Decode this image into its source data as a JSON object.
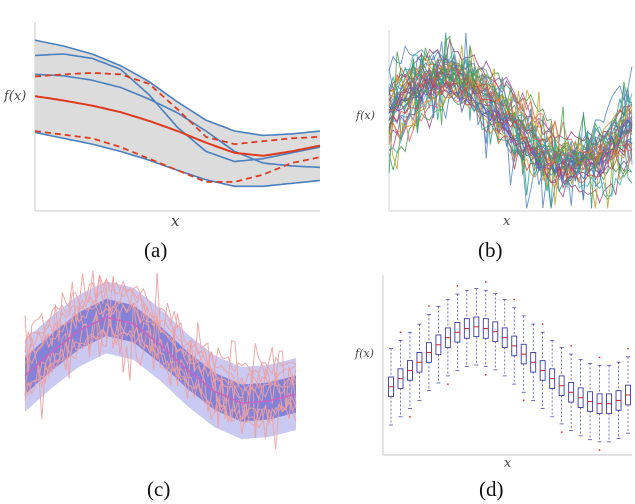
{
  "figure": {
    "captions": [
      "(a)",
      "(b)",
      "(c)",
      "(d)"
    ]
  },
  "colors": {
    "band_fill": "#dcdcdc",
    "band_edge": "#4a7fc0",
    "mean_red": "#e03a1e",
    "blue_band_inner": "#6a6ad0",
    "blue_band_outer": "#b7b7ee",
    "pink_trace": "#f0a0a0",
    "box_edge": "#3a3aa8",
    "outlier": "#e03030"
  },
  "chart_data": [
    {
      "id": "a",
      "type": "line",
      "xlabel": "x",
      "ylabel": "f(x)",
      "xlim": [
        0,
        1
      ],
      "ylim": [
        -1.3,
        1.3
      ],
      "grid": false,
      "x": [
        0,
        0.1,
        0.2,
        0.3,
        0.4,
        0.5,
        0.6,
        0.7,
        0.8,
        0.9,
        1.0
      ],
      "series": [
        {
          "role": "mean",
          "values": [
            0.28,
            0.22,
            0.15,
            0.06,
            -0.06,
            -0.2,
            -0.36,
            -0.5,
            -0.54,
            -0.48,
            -0.4
          ]
        },
        {
          "role": "band_upper",
          "values": [
            1.05,
            0.97,
            0.86,
            0.7,
            0.48,
            0.2,
            -0.05,
            -0.2,
            -0.26,
            -0.24,
            -0.2
          ]
        },
        {
          "role": "band_lower",
          "values": [
            -0.22,
            -0.3,
            -0.38,
            -0.48,
            -0.6,
            -0.74,
            -0.87,
            -0.96,
            -0.96,
            -0.92,
            -0.88
          ]
        },
        {
          "role": "sample_1",
          "values": [
            0.84,
            0.86,
            0.8,
            0.65,
            0.3,
            -0.15,
            -0.48,
            -0.62,
            -0.58,
            -0.5,
            -0.42
          ]
        },
        {
          "role": "sample_2",
          "values": [
            0.58,
            0.56,
            0.5,
            0.4,
            0.24,
            0.05,
            -0.2,
            -0.48,
            -0.64,
            -0.68,
            -0.7
          ]
        },
        {
          "role": "dashed_upper",
          "values": [
            0.55,
            0.58,
            0.6,
            0.58,
            0.45,
            0.1,
            -0.28,
            -0.38,
            -0.34,
            -0.3,
            -0.28
          ]
        },
        {
          "role": "dashed_lower",
          "values": [
            -0.2,
            -0.25,
            -0.3,
            -0.42,
            -0.58,
            -0.74,
            -0.9,
            -0.9,
            -0.8,
            -0.64,
            -0.56
          ]
        }
      ]
    },
    {
      "id": "b",
      "type": "line",
      "xlabel": "x",
      "ylabel": "f(x)",
      "xlim": [
        0,
        1
      ],
      "ylim": [
        -1.7,
        1.7
      ],
      "grid": false,
      "mean_function": "sin",
      "n_samples": 40,
      "series_note": "many random colored sample paths around a sine curve"
    },
    {
      "id": "c",
      "type": "area",
      "xlabel": "",
      "ylabel": "",
      "xlim": [
        0,
        1
      ],
      "ylim": [
        -1.7,
        1.7
      ],
      "grid": false,
      "x": [
        0,
        0.1,
        0.2,
        0.3,
        0.4,
        0.5,
        0.6,
        0.7,
        0.8,
        0.9,
        1.0
      ],
      "mean": [
        -0.2,
        0.25,
        0.65,
        0.9,
        0.78,
        0.38,
        -0.1,
        -0.5,
        -0.72,
        -0.68,
        -0.55
      ],
      "inner_halfwidth": [
        0.35,
        0.35,
        0.35,
        0.35,
        0.35,
        0.35,
        0.35,
        0.35,
        0.35,
        0.35,
        0.35
      ],
      "outer_halfwidth": [
        0.68,
        0.68,
        0.68,
        0.68,
        0.68,
        0.68,
        0.68,
        0.68,
        0.68,
        0.68,
        0.68
      ]
    },
    {
      "id": "d",
      "type": "box",
      "xlabel": "x",
      "ylabel": "f(x)",
      "xlim": [
        0,
        1
      ],
      "ylim": [
        -1.6,
        1.7
      ],
      "grid": false,
      "medians": [
        -0.35,
        -0.2,
        -0.05,
        0.1,
        0.28,
        0.42,
        0.55,
        0.65,
        0.72,
        0.75,
        0.72,
        0.66,
        0.55,
        0.4,
        0.25,
        0.1,
        -0.05,
        -0.2,
        -0.33,
        -0.45,
        -0.55,
        -0.62,
        -0.66,
        -0.66,
        -0.6,
        -0.5
      ]
    }
  ]
}
